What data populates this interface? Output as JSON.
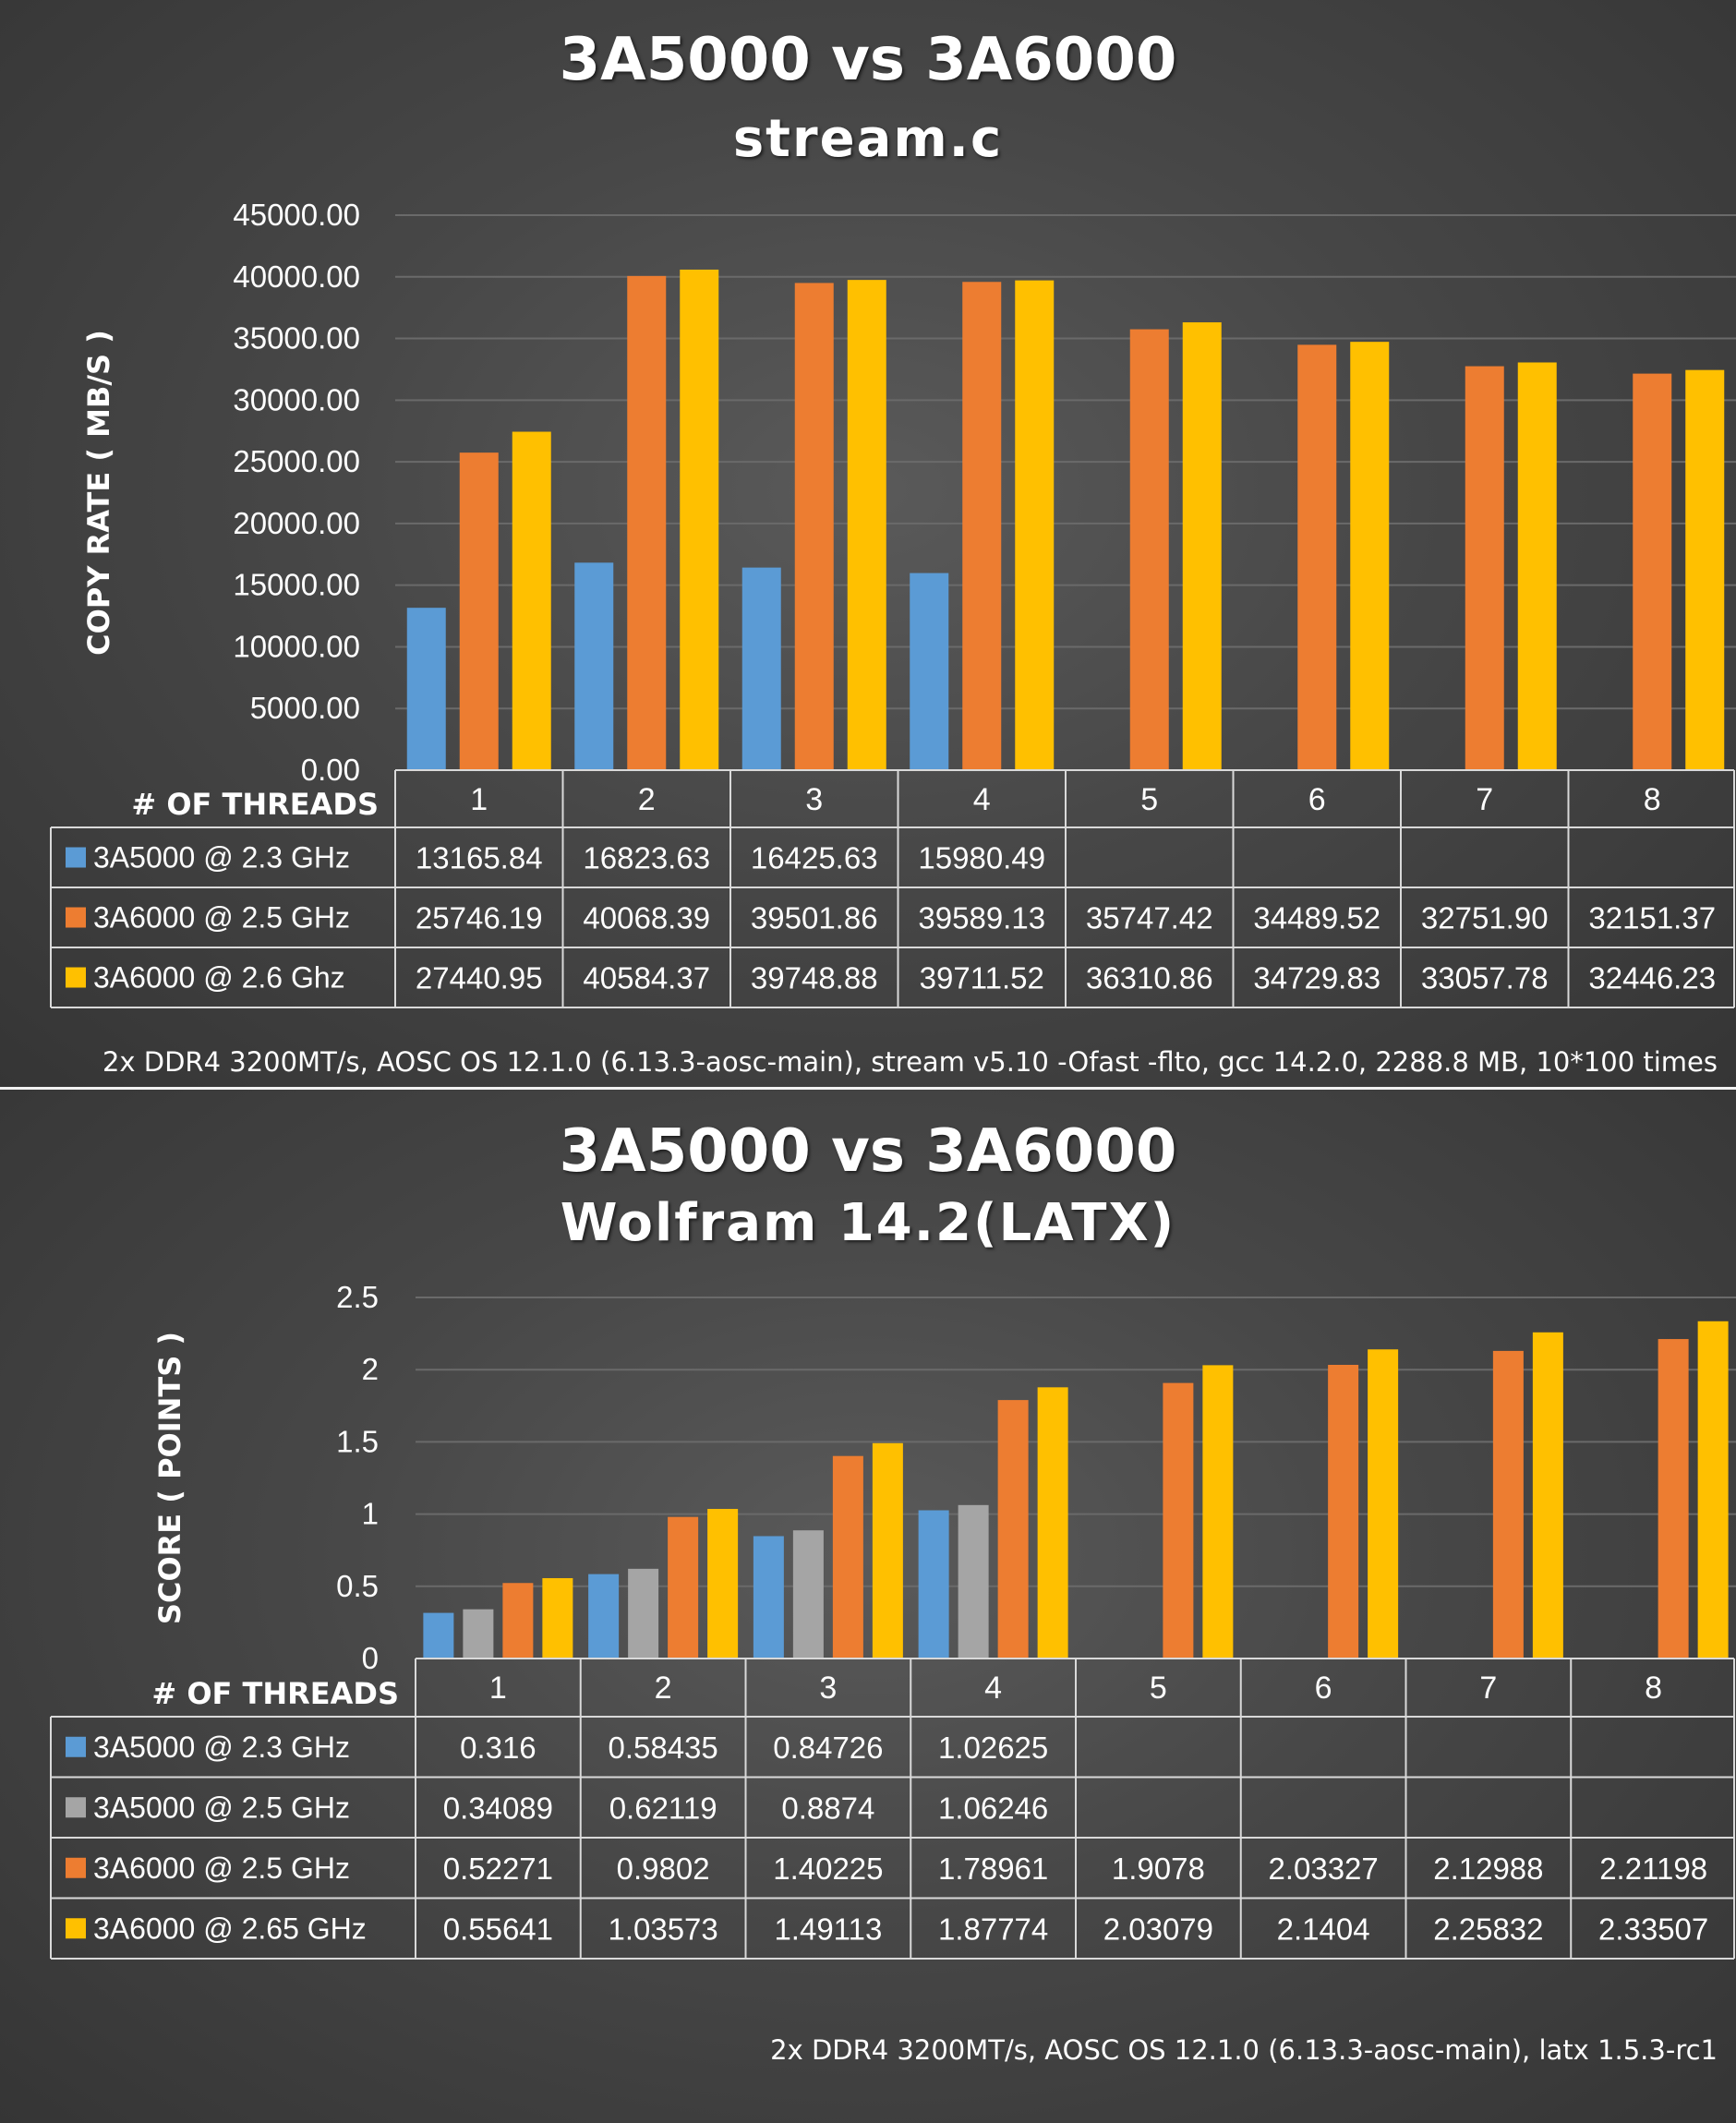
{
  "chart_data": [
    {
      "type": "bar",
      "title": "3A5000 vs 3A6000",
      "subtitle": "stream.c",
      "ylabel": "COPY RATE ( MB/S )",
      "xlabel": "# OF THREADS",
      "ylim": [
        0,
        45000
      ],
      "yticks": [
        "0.00",
        "5000.00",
        "10000.00",
        "15000.00",
        "20000.00",
        "25000.00",
        "30000.00",
        "35000.00",
        "40000.00",
        "45000.00"
      ],
      "grid": true,
      "legend": "data-table",
      "categories": [
        "1",
        "2",
        "3",
        "4",
        "5",
        "6",
        "7",
        "8"
      ],
      "series": [
        {
          "name": "3A5000 @ 2.3 GHz",
          "color": "#5b9bd5",
          "values": [
            13165.84,
            16823.63,
            16425.63,
            15980.49,
            null,
            null,
            null,
            null
          ],
          "labels": [
            "13165.84",
            "16823.63",
            "16425.63",
            "15980.49",
            "",
            "",
            "",
            ""
          ]
        },
        {
          "name": "3A6000 @ 2.5 GHz",
          "color": "#ed7d31",
          "values": [
            25746.19,
            40068.39,
            39501.86,
            39589.13,
            35747.42,
            34489.52,
            32751.9,
            32151.37
          ],
          "labels": [
            "25746.19",
            "40068.39",
            "39501.86",
            "39589.13",
            "35747.42",
            "34489.52",
            "32751.90",
            "32151.37"
          ]
        },
        {
          "name": "3A6000 @ 2.6 Ghz",
          "color": "#ffc000",
          "values": [
            27440.95,
            40584.37,
            39748.88,
            39711.52,
            36310.86,
            34729.83,
            33057.78,
            32446.23
          ],
          "labels": [
            "27440.95",
            "40584.37",
            "39748.88",
            "39711.52",
            "36310.86",
            "34729.83",
            "33057.78",
            "32446.23"
          ]
        }
      ],
      "footnote": "2x DDR4 3200MT/s, AOSC OS 12.1.0 (6.13.3-aosc-main), stream v5.10 -Ofast -flto, gcc 14.2.0, 2288.8 MB, 10*100 times"
    },
    {
      "type": "bar",
      "title": "3A5000 vs 3A6000",
      "subtitle": "Wolfram 14.2(LATX)",
      "ylabel": "SCORE ( POINTS )",
      "xlabel": "# OF THREADS",
      "ylim": [
        0,
        2.5
      ],
      "yticks": [
        "0",
        "0.5",
        "1",
        "1.5",
        "2",
        "2.5"
      ],
      "grid": true,
      "legend": "data-table",
      "categories": [
        "1",
        "2",
        "3",
        "4",
        "5",
        "6",
        "7",
        "8"
      ],
      "series": [
        {
          "name": "3A5000 @ 2.3 GHz",
          "color": "#5b9bd5",
          "values": [
            0.316,
            0.58435,
            0.84726,
            1.02625,
            null,
            null,
            null,
            null
          ],
          "labels": [
            "0.316",
            "0.58435",
            "0.84726",
            "1.02625",
            "",
            "",
            "",
            ""
          ]
        },
        {
          "name": "3A5000 @ 2.5 GHz",
          "color": "#a5a5a5",
          "values": [
            0.34089,
            0.62119,
            0.8874,
            1.06246,
            null,
            null,
            null,
            null
          ],
          "labels": [
            "0.34089",
            "0.62119",
            "0.8874",
            "1.06246",
            "",
            "",
            "",
            ""
          ]
        },
        {
          "name": "3A6000 @ 2.5 GHz",
          "color": "#ed7d31",
          "values": [
            0.52271,
            0.9802,
            1.40225,
            1.78961,
            1.9078,
            2.03327,
            2.12988,
            2.21198
          ],
          "labels": [
            "0.52271",
            "0.9802",
            "1.40225",
            "1.78961",
            "1.9078",
            "2.03327",
            "2.12988",
            "2.21198"
          ]
        },
        {
          "name": "3A6000 @ 2.65 GHz",
          "color": "#ffc000",
          "values": [
            0.55641,
            1.03573,
            1.49113,
            1.87774,
            2.03079,
            2.1404,
            2.25832,
            2.33507
          ],
          "labels": [
            "0.55641",
            "1.03573",
            "1.49113",
            "1.87774",
            "2.03079",
            "2.1404",
            "2.25832",
            "2.33507"
          ]
        }
      ],
      "footnote": "2x DDR4 3200MT/s, AOSC OS 12.1.0 (6.13.3-aosc-main), latx 1.5.3-rc1"
    }
  ]
}
